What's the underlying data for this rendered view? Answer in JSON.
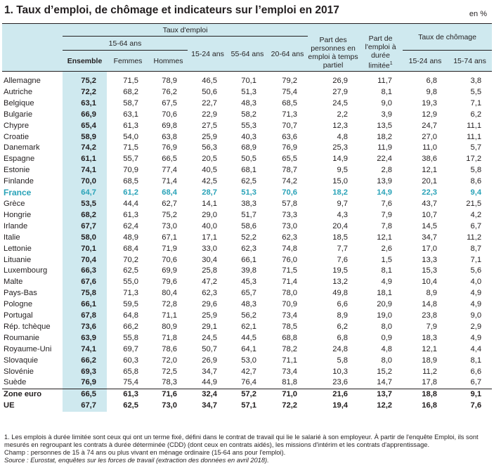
{
  "title": "1. Taux d’emploi, de chômage et indicateurs sur l’emploi en 2017",
  "unit": "en %",
  "headers": {
    "taux_emploi": "Taux d'emploi",
    "age_15_64": "15-64 ans",
    "ensemble": "Ensemble",
    "femmes": "Femmes",
    "hommes": "Hommes",
    "age_15_24": "15-24 ans",
    "age_55_64": "55-64 ans",
    "age_20_64": "20-64 ans",
    "part_temps_partiel": "Part des personnes en emploi à temps partiel",
    "part_duree_limitee": "Part de l'emploi à durée limitée",
    "note_mark": "1",
    "taux_chomage": "Taux de chômage",
    "ch_15_24": "15-24 ans",
    "ch_15_74": "15-74 ans"
  },
  "rows": [
    {
      "country": "Allemagne",
      "v": [
        "75,2",
        "71,5",
        "78,9",
        "46,5",
        "70,1",
        "79,2",
        "26,9",
        "11,7",
        "6,8",
        "3,8"
      ]
    },
    {
      "country": "Autriche",
      "v": [
        "72,2",
        "68,2",
        "76,2",
        "50,6",
        "51,3",
        "75,4",
        "27,9",
        "8,1",
        "9,8",
        "5,5"
      ]
    },
    {
      "country": "Belgique",
      "v": [
        "63,1",
        "58,7",
        "67,5",
        "22,7",
        "48,3",
        "68,5",
        "24,5",
        "9,0",
        "19,3",
        "7,1"
      ]
    },
    {
      "country": "Bulgarie",
      "v": [
        "66,9",
        "63,1",
        "70,6",
        "22,9",
        "58,2",
        "71,3",
        "2,2",
        "3,9",
        "12,9",
        "6,2"
      ]
    },
    {
      "country": "Chypre",
      "v": [
        "65,4",
        "61,3",
        "69,8",
        "27,5",
        "55,3",
        "70,7",
        "12,3",
        "13,5",
        "24,7",
        "11,1"
      ]
    },
    {
      "country": "Croatie",
      "v": [
        "58,9",
        "54,0",
        "63,8",
        "25,9",
        "40,3",
        "63,6",
        "4,8",
        "18,2",
        "27,0",
        "11,1"
      ]
    },
    {
      "country": "Danemark",
      "v": [
        "74,2",
        "71,5",
        "76,9",
        "56,3",
        "68,9",
        "76,9",
        "25,3",
        "11,9",
        "11,0",
        "5,7"
      ]
    },
    {
      "country": "Espagne",
      "v": [
        "61,1",
        "55,7",
        "66,5",
        "20,5",
        "50,5",
        "65,5",
        "14,9",
        "22,4",
        "38,6",
        "17,2"
      ]
    },
    {
      "country": "Estonie",
      "v": [
        "74,1",
        "70,9",
        "77,4",
        "40,5",
        "68,1",
        "78,7",
        "9,5",
        "2,8",
        "12,1",
        "5,8"
      ]
    },
    {
      "country": "Finlande",
      "v": [
        "70,0",
        "68,5",
        "71,4",
        "42,5",
        "62,5",
        "74,2",
        "15,0",
        "13,9",
        "20,1",
        "8,6"
      ]
    },
    {
      "country": "France",
      "v": [
        "64,7",
        "61,2",
        "68,4",
        "28,7",
        "51,3",
        "70,6",
        "18,2",
        "14,9",
        "22,3",
        "9,4"
      ],
      "highlight": true
    },
    {
      "country": "Grèce",
      "v": [
        "53,5",
        "44,4",
        "62,7",
        "14,1",
        "38,3",
        "57,8",
        "9,7",
        "7,6",
        "43,7",
        "21,5"
      ]
    },
    {
      "country": "Hongrie",
      "v": [
        "68,2",
        "61,3",
        "75,2",
        "29,0",
        "51,7",
        "73,3",
        "4,3",
        "7,9",
        "10,7",
        "4,2"
      ]
    },
    {
      "country": "Irlande",
      "v": [
        "67,7",
        "62,4",
        "73,0",
        "40,0",
        "58,6",
        "73,0",
        "20,4",
        "7,8",
        "14,5",
        "6,7"
      ]
    },
    {
      "country": "Italie",
      "v": [
        "58,0",
        "48,9",
        "67,1",
        "17,1",
        "52,2",
        "62,3",
        "18,5",
        "12,1",
        "34,7",
        "11,2"
      ]
    },
    {
      "country": "Lettonie",
      "v": [
        "70,1",
        "68,4",
        "71,9",
        "33,0",
        "62,3",
        "74,8",
        "7,7",
        "2,6",
        "17,0",
        "8,7"
      ]
    },
    {
      "country": "Lituanie",
      "v": [
        "70,4",
        "70,2",
        "70,6",
        "30,4",
        "66,1",
        "76,0",
        "7,6",
        "1,5",
        "13,3",
        "7,1"
      ]
    },
    {
      "country": "Luxembourg",
      "v": [
        "66,3",
        "62,5",
        "69,9",
        "25,8",
        "39,8",
        "71,5",
        "19,5",
        "8,1",
        "15,3",
        "5,6"
      ]
    },
    {
      "country": "Malte",
      "v": [
        "67,6",
        "55,0",
        "79,6",
        "47,2",
        "45,3",
        "71,4",
        "13,2",
        "4,9",
        "10,4",
        "4,0"
      ]
    },
    {
      "country": "Pays-Bas",
      "v": [
        "75,8",
        "71,3",
        "80,4",
        "62,3",
        "65,7",
        "78,0",
        "49,8",
        "18,1",
        "8,9",
        "4,9"
      ]
    },
    {
      "country": "Pologne",
      "v": [
        "66,1",
        "59,5",
        "72,8",
        "29,6",
        "48,3",
        "70,9",
        "6,6",
        "20,9",
        "14,8",
        "4,9"
      ]
    },
    {
      "country": "Portugal",
      "v": [
        "67,8",
        "64,8",
        "71,1",
        "25,9",
        "56,2",
        "73,4",
        "8,9",
        "19,0",
        "23,8",
        "9,0"
      ]
    },
    {
      "country": "Rép. tchèque",
      "v": [
        "73,6",
        "66,2",
        "80,9",
        "29,1",
        "62,1",
        "78,5",
        "6,2",
        "8,0",
        "7,9",
        "2,9"
      ]
    },
    {
      "country": "Roumanie",
      "v": [
        "63,9",
        "55,8",
        "71,8",
        "24,5",
        "44,5",
        "68,8",
        "6,8",
        "0,9",
        "18,3",
        "4,9"
      ]
    },
    {
      "country": "Royaume-Uni",
      "v": [
        "74,1",
        "69,7",
        "78,6",
        "50,7",
        "64,1",
        "78,2",
        "24,8",
        "4,8",
        "12,1",
        "4,4"
      ]
    },
    {
      "country": "Slovaquie",
      "v": [
        "66,2",
        "60,3",
        "72,0",
        "26,9",
        "53,0",
        "71,1",
        "5,8",
        "8,0",
        "18,9",
        "8,1"
      ]
    },
    {
      "country": "Slovénie",
      "v": [
        "69,3",
        "65,8",
        "72,5",
        "34,7",
        "42,7",
        "73,4",
        "10,3",
        "15,2",
        "11,2",
        "6,6"
      ]
    },
    {
      "country": "Suède",
      "v": [
        "76,9",
        "75,4",
        "78,3",
        "44,9",
        "76,4",
        "81,8",
        "23,6",
        "14,7",
        "17,8",
        "6,7"
      ]
    },
    {
      "country": "Zone euro",
      "v": [
        "66,5",
        "61,3",
        "71,6",
        "32,4",
        "57,2",
        "71,0",
        "21,6",
        "13,7",
        "18,8",
        "9,1"
      ],
      "bold": true,
      "zone": true
    },
    {
      "country": "UE",
      "v": [
        "67,7",
        "62,5",
        "73,0",
        "34,7",
        "57,1",
        "72,2",
        "19,4",
        "12,2",
        "16,8",
        "7,6"
      ],
      "bold": true
    }
  ],
  "notes": {
    "n1": "1. Les emplois à durée limitée sont ceux qui ont un terme fixé, défini dans le contrat de travail qui lie le salarié à son employeur. À partir de l'enquête Emploi, ils sont mesurés en regroupant les contrats à durée déterminée (CDD) (dont ceux en contrats aidés), les missions d'intérim et les contrats d'apprentissage.",
    "champ": "Champ : personnes de 15 à 74 ans ou plus vivant en ménage ordinaire (15-64 ans pour l'emploi).",
    "source": "Source : Eurostat, enquêtes sur les forces de travail (extraction des données en avril 2018)."
  }
}
